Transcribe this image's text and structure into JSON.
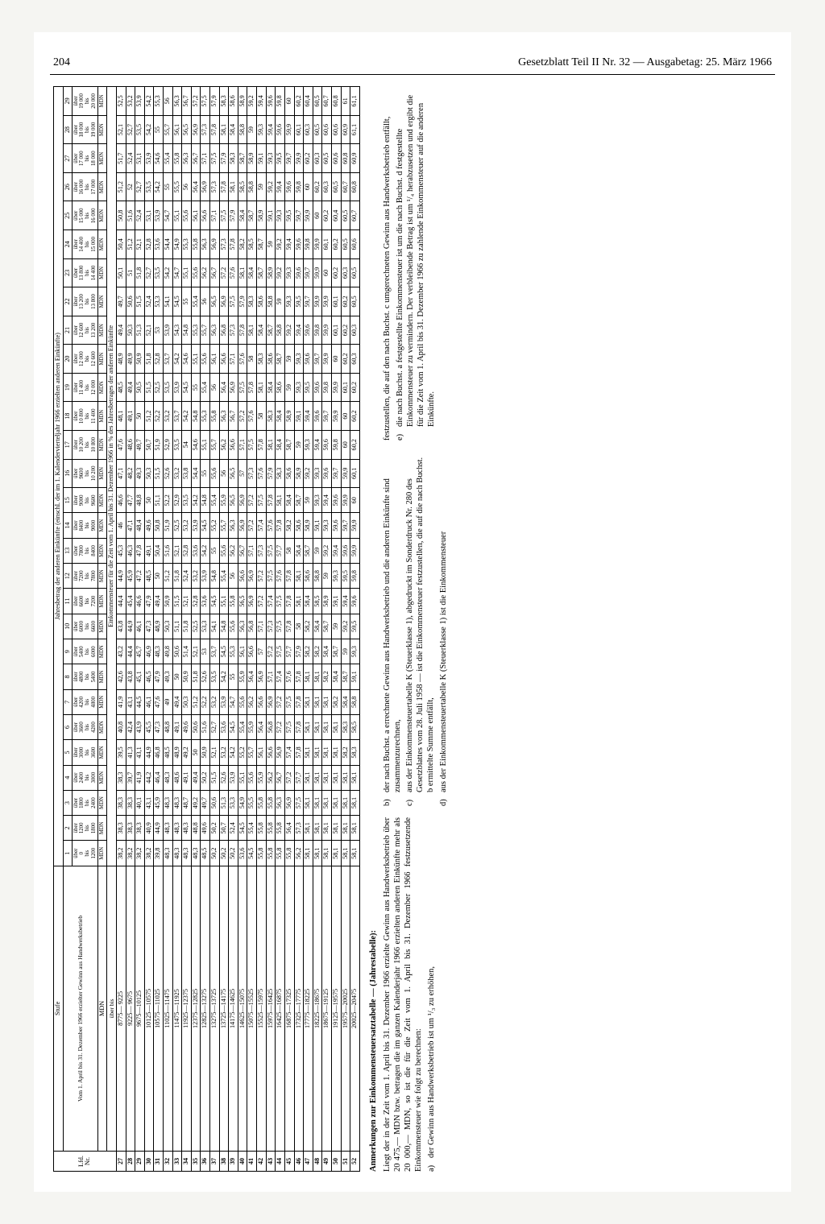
{
  "page_number": "204",
  "header_title": "Gesetzblatt Teil II Nr. 32 — Ausgabetag: 25. März 1966",
  "table": {
    "stufe_label": "Stufe",
    "jahresbetrag_label": "Jahresbetrag der anderen Einkünfte (einschl. der im 1. Kalendervierteljahr 1966 erzielten anderen Einkünfte)",
    "lfd_label": "Lfd.\nNr.",
    "left_desc": "Vom 1. April bis 31. Dezember 1966 erzielter Gewinn aus Handwerksbetrieb",
    "mdn_top": "MDN",
    "uber_bis": "über         bis",
    "col_headers": [
      "1",
      "2",
      "3",
      "4",
      "5",
      "6",
      "7",
      "8",
      "9",
      "10",
      "11",
      "12",
      "13",
      "14",
      "15",
      "16",
      "17",
      "18",
      "19",
      "20",
      "21",
      "22",
      "23",
      "24",
      "25",
      "26",
      "27",
      "28",
      "29"
    ],
    "col_ranges_top": [
      "über\n0",
      "über\n1200",
      "über\n1800",
      "über\n2400",
      "über\n3000",
      "über\n3600",
      "über\n4200",
      "über\n4800",
      "über\n5400",
      "über\n6000",
      "über\n6600",
      "über\n7200",
      "über\n7800",
      "über\n8400",
      "über\n9000",
      "über\n9600",
      "über\n10 200",
      "über\n10 800",
      "über\n11 400",
      "über\n12 000",
      "über\n12 600",
      "über\n13 200",
      "über\n13 800",
      "über\n14 400",
      "über\n15 000",
      "über\n16 000",
      "über\n17 000",
      "über\n18 000",
      "über\n19 000"
    ],
    "col_ranges_mid": [
      "bis",
      "bis",
      "bis",
      "bis",
      "bis",
      "bis",
      "bis",
      "bis",
      "bis",
      "bis",
      "bis",
      "bis",
      "bis",
      "bis",
      "bis",
      "bis",
      "bis",
      "bis",
      "bis",
      "bis",
      "bis",
      "bis",
      "bis",
      "bis",
      "bis",
      "bis",
      "bis",
      "bis",
      "bis"
    ],
    "col_ranges_bot": [
      "1200",
      "1800",
      "2400",
      "3000",
      "3600",
      "4200",
      "4800",
      "5400",
      "6000",
      "6600",
      "7200",
      "7800",
      "8400",
      "9000",
      "9600",
      "10 200",
      "10 800",
      "11 400",
      "12 000",
      "12 600",
      "13 200",
      "13 800",
      "14 400",
      "15 000",
      "16 000",
      "17 000",
      "18 000",
      "19 000",
      "20 000"
    ],
    "mdn_row_label": "MDN",
    "section_label": "Einkommensteuer für die Zeit vom 1. April bis 31. Dezember 1966 in % des Jahresbetrages der anderen Einkünfte",
    "rows": [
      {
        "n": "27",
        "r": "8775— 9225",
        "v": [
          "38,2",
          "38,3",
          "38,3",
          "38,3",
          "39,5",
          "40,8",
          "41,9",
          "42,6",
          "43,2",
          "43,8",
          "44,4",
          "44,9",
          "45,3",
          "46",
          "46,6",
          "47,1",
          "47,6",
          "48,1",
          "48,5",
          "48,9",
          "49,4",
          "49,7",
          "50,1",
          "50,4",
          "50,8",
          "51,2",
          "51,7",
          "52,1",
          "52,5"
        ]
      },
      {
        "n": "28",
        "r": "9225— 9675",
        "v": [
          "38,2",
          "38,3",
          "38,3",
          "39,7",
          "41,3",
          "42,4",
          "43,1",
          "43,8",
          "44,4",
          "44,9",
          "45,4",
          "45,9",
          "46,3",
          "47,1",
          "47,7",
          "48,2",
          "48,6",
          "49,1",
          "49,4",
          "49,9",
          "50,3",
          "50,6",
          "51",
          "51,2",
          "51,6",
          "52",
          "52,4",
          "52,7",
          "53,2"
        ]
      },
      {
        "n": "29",
        "r": "9675—10125",
        "v": [
          "38,2",
          "38,3",
          "40,1",
          "41,9",
          "43,1",
          "43,9",
          "44,5",
          "45,1",
          "45,7",
          "46,1",
          "46,6",
          "47,2",
          "47,8",
          "48,4",
          "48,8",
          "49,3",
          "49,7",
          "50",
          "50,5",
          "50,9",
          "51,3",
          "51,5",
          "51,8",
          "52,1",
          "52,4",
          "52,7",
          "53,1",
          "53,5",
          "53,9"
        ]
      },
      {
        "n": "30",
        "r": "10125—10575",
        "v": [
          "38,2",
          "40,9",
          "43,1",
          "44,2",
          "44,9",
          "45,5",
          "46,1",
          "46,5",
          "46,9",
          "47,3",
          "47,9",
          "48,5",
          "49,1",
          "49,6",
          "50",
          "50,3",
          "50,7",
          "51,2",
          "51,5",
          "51,8",
          "52,1",
          "52,4",
          "52,7",
          "52,8",
          "53,1",
          "53,5",
          "53,9",
          "54,2",
          "54,2"
        ]
      },
      {
        "n": "31",
        "r": "10575—11025",
        "v": [
          "39,8",
          "44,9",
          "45,9",
          "46,4",
          "46,8",
          "47,3",
          "47,6",
          "47,9",
          "48,3",
          "48,9",
          "49,4",
          "50",
          "50,4",
          "50,8",
          "51,1",
          "51,5",
          "51,9",
          "52,2",
          "52,5",
          "52,8",
          "53",
          "53,3",
          "53,5",
          "53,6",
          "53,9",
          "54,2",
          "54,6",
          "55",
          "55,3"
        ]
      },
      {
        "n": "32",
        "r": "11025—11475",
        "v": [
          "48,3",
          "48,3",
          "48,3",
          "48,3",
          "48,5",
          "48,8",
          "49",
          "49,3",
          "49,8",
          "50,3",
          "50,9",
          "51,2",
          "51,6",
          "51,9",
          "52,2",
          "52,6",
          "52,9",
          "53,2",
          "53,5",
          "53,7",
          "53,9",
          "54,1",
          "54,2",
          "54,4",
          "54,7",
          "55",
          "55,4",
          "55,7",
          "56"
        ]
      },
      {
        "n": "33",
        "r": "11475—11925",
        "v": [
          "48,3",
          "48,3",
          "48,3",
          "48,6",
          "48,9",
          "49,1",
          "49,4",
          "50",
          "50,6",
          "51,1",
          "51,5",
          "51,8",
          "52,1",
          "52,5",
          "52,9",
          "53,2",
          "53,5",
          "53,7",
          "53,9",
          "54,2",
          "54,3",
          "54,5",
          "54,7",
          "54,9",
          "55,1",
          "55,5",
          "55,8",
          "56,1",
          "56,3"
        ]
      },
      {
        "n": "34",
        "r": "11925—12375",
        "v": [
          "48,3",
          "48,3",
          "48,7",
          "49,1",
          "49,2",
          "49,6",
          "50,3",
          "50,9",
          "51,4",
          "51,8",
          "52,1",
          "52,4",
          "52,8",
          "53,2",
          "53,5",
          "53,8",
          "54",
          "54,2",
          "54,5",
          "54,6",
          "54,8",
          "55",
          "55,1",
          "55,3",
          "55,6",
          "56",
          "56,3",
          "56,5",
          "56,7"
        ]
      },
      {
        "n": "35",
        "r": "12375—12825",
        "v": [
          "48,3",
          "48,8",
          "49,2",
          "49,4",
          "50",
          "50,6",
          "51,2",
          "51,8",
          "52,1",
          "52,5",
          "52,8",
          "53,2",
          "53,6",
          "53,9",
          "54,2",
          "54,4",
          "54,6",
          "54,8",
          "55",
          "55,1",
          "55,3",
          "55,4",
          "55,6",
          "55,8",
          "56,1",
          "56,4",
          "56,7",
          "56,9",
          "57,2"
        ]
      },
      {
        "n": "36",
        "r": "12825—13275",
        "v": [
          "48,5",
          "49,6",
          "49,7",
          "50,2",
          "50,9",
          "51,6",
          "52,2",
          "52,6",
          "53",
          "53,3",
          "53,6",
          "53,9",
          "54,2",
          "54,5",
          "54,8",
          "55",
          "55,1",
          "55,3",
          "55,4",
          "55,6",
          "55,7",
          "56",
          "56,2",
          "56,3",
          "56,6",
          "56,9",
          "57,1",
          "57,3",
          "57,5"
        ]
      },
      {
        "n": "37",
        "r": "13275—13725",
        "v": [
          "50,2",
          "50,2",
          "50,6",
          "51,5",
          "52,1",
          "52,7",
          "53,2",
          "53,5",
          "53,7",
          "54,1",
          "54,5",
          "54,8",
          "55",
          "55,2",
          "55,4",
          "55,6",
          "55,7",
          "55,8",
          "56",
          "56,1",
          "56,3",
          "56,5",
          "56,7",
          "56,9",
          "57,1",
          "57,3",
          "57,5",
          "57,8",
          "57,9"
        ]
      },
      {
        "n": "38",
        "r": "13725—14175",
        "v": [
          "50,2",
          "50,7",
          "51,3",
          "52,6",
          "53,2",
          "53,6",
          "53,9",
          "54,2",
          "54,5",
          "54,8",
          "55,1",
          "55,4",
          "55,6",
          "55,7",
          "55,9",
          "56",
          "56,2",
          "56,3",
          "56,4",
          "56,6",
          "56,8",
          "56,9",
          "57,2",
          "57,3",
          "57,5",
          "57,8",
          "57,9",
          "58,1",
          "58,3"
        ]
      },
      {
        "n": "39",
        "r": "14175—14625",
        "v": [
          "50,2",
          "52,4",
          "53,3",
          "53,9",
          "54,2",
          "54,5",
          "54,7",
          "55",
          "55,3",
          "55,6",
          "55,8",
          "56",
          "56,2",
          "56,3",
          "56,5",
          "56,5",
          "56,6",
          "56,7",
          "56,9",
          "57,1",
          "57,3",
          "57,5",
          "57,6",
          "57,8",
          "57,9",
          "58,1",
          "58,3",
          "58,4",
          "58,6"
        ]
      },
      {
        "n": "40",
        "r": "14625—15075",
        "v": [
          "53,6",
          "54,5",
          "54,9",
          "55,1",
          "55,2",
          "55,4",
          "55,6",
          "55,9",
          "56,1",
          "56,3",
          "56,5",
          "56,6",
          "56,7",
          "56,9",
          "56,9",
          "57",
          "57,1",
          "57,2",
          "57,5",
          "57,6",
          "57,8",
          "57,9",
          "58,1",
          "58,2",
          "58,4",
          "58,5",
          "58,7",
          "58,8",
          "58,9"
        ]
      },
      {
        "n": "41",
        "r": "15075—15525",
        "v": [
          "54,5",
          "55,4",
          "55,5",
          "55,6",
          "55,7",
          "55,9",
          "56,2",
          "56,4",
          "56,6",
          "56,8",
          "56,9",
          "56,9",
          "57,1",
          "57,2",
          "57,2",
          "57,3",
          "57,5",
          "57,6",
          "57,8",
          "58",
          "58,1",
          "58,3",
          "58,4",
          "58,5",
          "58,7",
          "58,8",
          "58,9",
          "59",
          "59,2"
        ]
      },
      {
        "n": "42",
        "r": "15525—15975",
        "v": [
          "55,8",
          "55,8",
          "55,8",
          "55,9",
          "56,1",
          "56,4",
          "56,6",
          "56,9",
          "57",
          "57,1",
          "57,2",
          "57,2",
          "57,3",
          "57,4",
          "57,5",
          "57,6",
          "57,8",
          "58",
          "58,1",
          "58,3",
          "58,4",
          "58,6",
          "58,7",
          "58,7",
          "58,9",
          "59",
          "59,1",
          "59,3",
          "59,4"
        ]
      },
      {
        "n": "43",
        "r": "15975—16425",
        "v": [
          "55,8",
          "55,8",
          "55,8",
          "56,2",
          "56,6",
          "56,8",
          "56,9",
          "57,1",
          "57,2",
          "57,3",
          "57,4",
          "57,5",
          "57,5",
          "57,6",
          "57,8",
          "57,9",
          "58,1",
          "58,3",
          "58,4",
          "58,6",
          "58,7",
          "58,8",
          "58,9",
          "59",
          "59,1",
          "59,2",
          "59,3",
          "59,4",
          "59,6"
        ]
      },
      {
        "n": "44",
        "r": "16425—16875",
        "v": [
          "55,8",
          "55,8",
          "56,3",
          "56,7",
          "56,9",
          "57,2",
          "57,2",
          "57,4",
          "57,5",
          "57,5",
          "57,5",
          "57,6",
          "57,7",
          "57,8",
          "58,1",
          "58,3",
          "58,4",
          "58,4",
          "58,6",
          "58,7",
          "58,8",
          "59",
          "59,2",
          "59,2",
          "59,3",
          "59,4",
          "59,5",
          "59,6",
          "59,8"
        ]
      },
      {
        "n": "45",
        "r": "16875—17325",
        "v": [
          "55,8",
          "56,4",
          "56,9",
          "57,2",
          "57,4",
          "57,5",
          "57,5",
          "57,6",
          "57,7",
          "57,8",
          "57,8",
          "57,8",
          "58",
          "58,2",
          "58,4",
          "58,6",
          "58,7",
          "58,9",
          "59",
          "59",
          "59,2",
          "59,3",
          "59,3",
          "59,4",
          "59,5",
          "59,6",
          "59,7",
          "59,9",
          "60"
        ]
      },
      {
        "n": "46",
        "r": "17325—17775",
        "v": [
          "56,2",
          "57,3",
          "57,5",
          "57,7",
          "57,8",
          "57,8",
          "57,8",
          "57,8",
          "57,9",
          "58",
          "58,1",
          "58,1",
          "58,4",
          "58,6",
          "58,7",
          "58,9",
          "59",
          "59,1",
          "59,3",
          "59,3",
          "59,4",
          "59,5",
          "59,6",
          "59,6",
          "59,7",
          "59,8",
          "59,9",
          "60,1",
          "60,2"
        ]
      },
      {
        "n": "47",
        "r": "17775—18225",
        "v": [
          "58,1",
          "58,1",
          "58,1",
          "58,1",
          "58,1",
          "58,1",
          "58,1",
          "58,1",
          "58,2",
          "58,2",
          "58,4",
          "58,6",
          "58,7",
          "58,9",
          "59",
          "59,2",
          "59,3",
          "59,4",
          "59,5",
          "59,6",
          "59,6",
          "59,7",
          "59,7",
          "59,8",
          "59,9",
          "60",
          "60,2",
          "60,3",
          "60,4"
        ]
      },
      {
        "n": "48",
        "r": "18225—18675",
        "v": [
          "58,1",
          "58,1",
          "58,1",
          "58,1",
          "58,1",
          "58,1",
          "58,1",
          "58,1",
          "58,2",
          "58,4",
          "58,5",
          "58,8",
          "59",
          "59,1",
          "59,3",
          "59,3",
          "59,4",
          "59,6",
          "59,6",
          "59,7",
          "59,8",
          "59,9",
          "59,9",
          "59,9",
          "60",
          "60,2",
          "60,3",
          "60,5",
          "60,5"
        ]
      },
      {
        "n": "49",
        "r": "18675—19125",
        "v": [
          "58,1",
          "58,1",
          "58,1",
          "58,1",
          "58,1",
          "58,1",
          "58,1",
          "58,2",
          "58,4",
          "58,7",
          "58,9",
          "59",
          "59,2",
          "59,3",
          "59,4",
          "59,6",
          "59,6",
          "59,7",
          "59,8",
          "59,9",
          "59,9",
          "59,9",
          "60",
          "60,1",
          "60,2",
          "60,3",
          "60,5",
          "60,6",
          "60,7"
        ]
      },
      {
        "n": "50",
        "r": "19125—19575",
        "v": [
          "58,1",
          "58,1",
          "58,1",
          "58,1",
          "58,1",
          "58,1",
          "58,2",
          "58,4",
          "58,7",
          "59",
          "59,1",
          "59,3",
          "59,4",
          "59,6",
          "59,6",
          "59,7",
          "59,8",
          "59,9",
          "59,9",
          "60",
          "60,1",
          "60,1",
          "60,2",
          "60,2",
          "60,4",
          "60,5",
          "60,6",
          "60,6",
          "60,8"
        ]
      },
      {
        "n": "51",
        "r": "19575—20025",
        "v": [
          "58,1",
          "58,1",
          "58,1",
          "58,1",
          "58,2",
          "58,3",
          "58,4",
          "58,7",
          "59",
          "59,2",
          "59,4",
          "59,5",
          "59,6",
          "59,7",
          "59,9",
          "59,9",
          "60",
          "60",
          "60,1",
          "60,2",
          "60,2",
          "60,2",
          "60,3",
          "60,5",
          "60,5",
          "60,7",
          "60,8",
          "60,9",
          "61"
        ]
      },
      {
        "n": "52",
        "r": "20025—20475",
        "v": [
          "58,1",
          "58,1",
          "58,1",
          "58,1",
          "58,3",
          "58,5",
          "58,8",
          "59,1",
          "59,3",
          "59,5",
          "59,6",
          "59,8",
          "59,9",
          "59,9",
          "60",
          "60,1",
          "60,2",
          "60,2",
          "60,2",
          "60,3",
          "60,3",
          "60,5",
          "60,5",
          "60,6",
          "60,7",
          "60,8",
          "60,9",
          "61,1",
          "61,1"
        ]
      }
    ]
  },
  "annotations": {
    "title": "Anmerkungen zur Einkommensteuersatztabelle — (Jahrestabelle):",
    "intro": "Liegt der in der Zeit vom 1. April bis 31. Dezember 1966 erzielte Gewinn aus Handwerksbetrieb über 20 475,— MDN bzw. betragen die im ganzen Kalenderjahr 1966 erzielten anderen Einkünfte mehr als 20 000,— MDN, so ist die für die Zeit vom 1. April bis 31. Dezember 1966 festzusetzende Einkommensteuer wie folgt zu berechnen:",
    "items": [
      {
        "l": "a)",
        "t": "der Gewinn aus Handwerksbetrieb ist um ¹/₃ zu erhöhen,"
      },
      {
        "l": "b)",
        "t": "der nach Buchst. a errechnete Gewinn aus Handwerksbetrieb und die anderen Einkünfte sind zusammenzurechnen,"
      },
      {
        "l": "c)",
        "t": "aus der Einkommensteuertabelle K (Steuerklasse 1), abgedruckt im Sonderdruck Nr. 280 des Gesetzblattes vom 28. Juli 1958 — ist die Einkommensteuer festzustellen, die auf die nach Buchst. b ermittelte Summe entfällt,"
      },
      {
        "l": "d)",
        "t": "aus der Einkommensteuertabelle K (Steuerklasse 1) ist die Einkommensteuer"
      }
    ],
    "col3": [
      "festzustellen, die auf den nach Buchst. c umgerechneten Gewinn aus Handwerksbetrieb entfällt,",
      {
        "l": "e)",
        "t": "die nach Buchst. a festgestellte Einkommensteuer ist um die nach Buchst. d festgestellte Einkommensteuer zu vermindern. Der verbleibende Betrag ist um ¹/₄ herabzusetzen und ergibt die für die Zeit vom 1. April bis 31. Dezember 1966 zu zahlende Einkommensteuer auf die anderen Einkünfte."
      }
    ]
  }
}
